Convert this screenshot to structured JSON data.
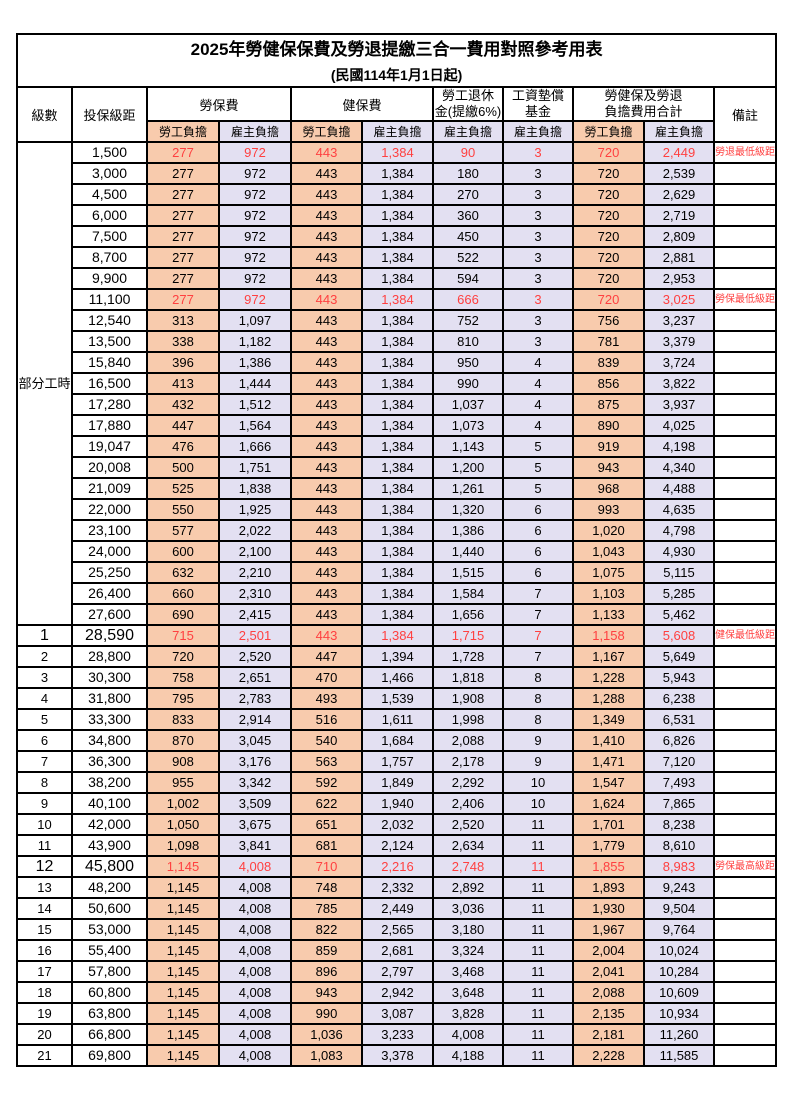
{
  "title": "2025年勞健保保費及勞退提繳三合一費用對照參考用表",
  "subtitle": "(民國114年1月1日起)",
  "colors": {
    "worker_bg": "#F8CBAD",
    "employer_bg": "#E3E0F2",
    "highlight_text": "#FF4040",
    "border": "#000000"
  },
  "header": {
    "level": "級數",
    "bracket": "投保級距",
    "labor_insurance": "勞保費",
    "health_insurance": "健保費",
    "pension_line1": "勞工退休",
    "pension_line2": "金(提繳6%)",
    "wage_fund_line1": "工資墊償",
    "wage_fund_line2": "基金",
    "total_line1": "勞健保及勞退",
    "total_line2": "負擔費用合計",
    "remarks": "備註",
    "worker_share": "勞工負擔",
    "employer_share": "雇主負擔"
  },
  "part_time_label": "部分工時",
  "rows": [
    {
      "level": "",
      "bracket": "1,500",
      "values": [
        "277",
        "972",
        "443",
        "1,384",
        "90",
        "3",
        "720",
        "2,449"
      ],
      "note": "勞退最低級距",
      "highlight": true,
      "big": false
    },
    {
      "level": "",
      "bracket": "3,000",
      "values": [
        "277",
        "972",
        "443",
        "1,384",
        "180",
        "3",
        "720",
        "2,539"
      ],
      "note": "",
      "highlight": false,
      "big": false
    },
    {
      "level": "",
      "bracket": "4,500",
      "values": [
        "277",
        "972",
        "443",
        "1,384",
        "270",
        "3",
        "720",
        "2,629"
      ],
      "note": "",
      "highlight": false,
      "big": false
    },
    {
      "level": "",
      "bracket": "6,000",
      "values": [
        "277",
        "972",
        "443",
        "1,384",
        "360",
        "3",
        "720",
        "2,719"
      ],
      "note": "",
      "highlight": false,
      "big": false
    },
    {
      "level": "",
      "bracket": "7,500",
      "values": [
        "277",
        "972",
        "443",
        "1,384",
        "450",
        "3",
        "720",
        "2,809"
      ],
      "note": "",
      "highlight": false,
      "big": false
    },
    {
      "level": "",
      "bracket": "8,700",
      "values": [
        "277",
        "972",
        "443",
        "1,384",
        "522",
        "3",
        "720",
        "2,881"
      ],
      "note": "",
      "highlight": false,
      "big": false
    },
    {
      "level": "",
      "bracket": "9,900",
      "values": [
        "277",
        "972",
        "443",
        "1,384",
        "594",
        "3",
        "720",
        "2,953"
      ],
      "note": "",
      "highlight": false,
      "big": false
    },
    {
      "level": "",
      "bracket": "11,100",
      "values": [
        "277",
        "972",
        "443",
        "1,384",
        "666",
        "3",
        "720",
        "3,025"
      ],
      "note": "勞保最低級距",
      "highlight": true,
      "big": false
    },
    {
      "level": "",
      "bracket": "12,540",
      "values": [
        "313",
        "1,097",
        "443",
        "1,384",
        "752",
        "3",
        "756",
        "3,237"
      ],
      "note": "",
      "highlight": false,
      "big": false
    },
    {
      "level": "",
      "bracket": "13,500",
      "values": [
        "338",
        "1,182",
        "443",
        "1,384",
        "810",
        "3",
        "781",
        "3,379"
      ],
      "note": "",
      "highlight": false,
      "big": false
    },
    {
      "level": "",
      "bracket": "15,840",
      "values": [
        "396",
        "1,386",
        "443",
        "1,384",
        "950",
        "4",
        "839",
        "3,724"
      ],
      "note": "",
      "highlight": false,
      "big": false
    },
    {
      "level": "",
      "bracket": "16,500",
      "values": [
        "413",
        "1,444",
        "443",
        "1,384",
        "990",
        "4",
        "856",
        "3,822"
      ],
      "note": "",
      "highlight": false,
      "big": false
    },
    {
      "level": "",
      "bracket": "17,280",
      "values": [
        "432",
        "1,512",
        "443",
        "1,384",
        "1,037",
        "4",
        "875",
        "3,937"
      ],
      "note": "",
      "highlight": false,
      "big": false
    },
    {
      "level": "",
      "bracket": "17,880",
      "values": [
        "447",
        "1,564",
        "443",
        "1,384",
        "1,073",
        "4",
        "890",
        "4,025"
      ],
      "note": "",
      "highlight": false,
      "big": false
    },
    {
      "level": "",
      "bracket": "19,047",
      "values": [
        "476",
        "1,666",
        "443",
        "1,384",
        "1,143",
        "5",
        "919",
        "4,198"
      ],
      "note": "",
      "highlight": false,
      "big": false
    },
    {
      "level": "",
      "bracket": "20,008",
      "values": [
        "500",
        "1,751",
        "443",
        "1,384",
        "1,200",
        "5",
        "943",
        "4,340"
      ],
      "note": "",
      "highlight": false,
      "big": false
    },
    {
      "level": "",
      "bracket": "21,009",
      "values": [
        "525",
        "1,838",
        "443",
        "1,384",
        "1,261",
        "5",
        "968",
        "4,488"
      ],
      "note": "",
      "highlight": false,
      "big": false
    },
    {
      "level": "",
      "bracket": "22,000",
      "values": [
        "550",
        "1,925",
        "443",
        "1,384",
        "1,320",
        "6",
        "993",
        "4,635"
      ],
      "note": "",
      "highlight": false,
      "big": false
    },
    {
      "level": "",
      "bracket": "23,100",
      "values": [
        "577",
        "2,022",
        "443",
        "1,384",
        "1,386",
        "6",
        "1,020",
        "4,798"
      ],
      "note": "",
      "highlight": false,
      "big": false
    },
    {
      "level": "",
      "bracket": "24,000",
      "values": [
        "600",
        "2,100",
        "443",
        "1,384",
        "1,440",
        "6",
        "1,043",
        "4,930"
      ],
      "note": "",
      "highlight": false,
      "big": false
    },
    {
      "level": "",
      "bracket": "25,250",
      "values": [
        "632",
        "2,210",
        "443",
        "1,384",
        "1,515",
        "6",
        "1,075",
        "5,115"
      ],
      "note": "",
      "highlight": false,
      "big": false
    },
    {
      "level": "",
      "bracket": "26,400",
      "values": [
        "660",
        "2,310",
        "443",
        "1,384",
        "1,584",
        "7",
        "1,103",
        "5,285"
      ],
      "note": "",
      "highlight": false,
      "big": false
    },
    {
      "level": "",
      "bracket": "27,600",
      "values": [
        "690",
        "2,415",
        "443",
        "1,384",
        "1,656",
        "7",
        "1,133",
        "5,462"
      ],
      "note": "",
      "highlight": false,
      "big": false
    },
    {
      "level": "1",
      "bracket": "28,590",
      "values": [
        "715",
        "2,501",
        "443",
        "1,384",
        "1,715",
        "7",
        "1,158",
        "5,608"
      ],
      "note": "健保最低級距",
      "highlight": true,
      "big": true
    },
    {
      "level": "2",
      "bracket": "28,800",
      "values": [
        "720",
        "2,520",
        "447",
        "1,394",
        "1,728",
        "7",
        "1,167",
        "5,649"
      ],
      "note": "",
      "highlight": false,
      "big": false
    },
    {
      "level": "3",
      "bracket": "30,300",
      "values": [
        "758",
        "2,651",
        "470",
        "1,466",
        "1,818",
        "8",
        "1,228",
        "5,943"
      ],
      "note": "",
      "highlight": false,
      "big": false
    },
    {
      "level": "4",
      "bracket": "31,800",
      "values": [
        "795",
        "2,783",
        "493",
        "1,539",
        "1,908",
        "8",
        "1,288",
        "6,238"
      ],
      "note": "",
      "highlight": false,
      "big": false
    },
    {
      "level": "5",
      "bracket": "33,300",
      "values": [
        "833",
        "2,914",
        "516",
        "1,611",
        "1,998",
        "8",
        "1,349",
        "6,531"
      ],
      "note": "",
      "highlight": false,
      "big": false
    },
    {
      "level": "6",
      "bracket": "34,800",
      "values": [
        "870",
        "3,045",
        "540",
        "1,684",
        "2,088",
        "9",
        "1,410",
        "6,826"
      ],
      "note": "",
      "highlight": false,
      "big": false
    },
    {
      "level": "7",
      "bracket": "36,300",
      "values": [
        "908",
        "3,176",
        "563",
        "1,757",
        "2,178",
        "9",
        "1,471",
        "7,120"
      ],
      "note": "",
      "highlight": false,
      "big": false
    },
    {
      "level": "8",
      "bracket": "38,200",
      "values": [
        "955",
        "3,342",
        "592",
        "1,849",
        "2,292",
        "10",
        "1,547",
        "7,493"
      ],
      "note": "",
      "highlight": false,
      "big": false
    },
    {
      "level": "9",
      "bracket": "40,100",
      "values": [
        "1,002",
        "3,509",
        "622",
        "1,940",
        "2,406",
        "10",
        "1,624",
        "7,865"
      ],
      "note": "",
      "highlight": false,
      "big": false
    },
    {
      "level": "10",
      "bracket": "42,000",
      "values": [
        "1,050",
        "3,675",
        "651",
        "2,032",
        "2,520",
        "11",
        "1,701",
        "8,238"
      ],
      "note": "",
      "highlight": false,
      "big": false
    },
    {
      "level": "11",
      "bracket": "43,900",
      "values": [
        "1,098",
        "3,841",
        "681",
        "2,124",
        "2,634",
        "11",
        "1,779",
        "8,610"
      ],
      "note": "",
      "highlight": false,
      "big": false
    },
    {
      "level": "12",
      "bracket": "45,800",
      "values": [
        "1,145",
        "4,008",
        "710",
        "2,216",
        "2,748",
        "11",
        "1,855",
        "8,983"
      ],
      "note": "勞保最高級距",
      "highlight": true,
      "big": true
    },
    {
      "level": "13",
      "bracket": "48,200",
      "values": [
        "1,145",
        "4,008",
        "748",
        "2,332",
        "2,892",
        "11",
        "1,893",
        "9,243"
      ],
      "note": "",
      "highlight": false,
      "big": false
    },
    {
      "level": "14",
      "bracket": "50,600",
      "values": [
        "1,145",
        "4,008",
        "785",
        "2,449",
        "3,036",
        "11",
        "1,930",
        "9,504"
      ],
      "note": "",
      "highlight": false,
      "big": false
    },
    {
      "level": "15",
      "bracket": "53,000",
      "values": [
        "1,145",
        "4,008",
        "822",
        "2,565",
        "3,180",
        "11",
        "1,967",
        "9,764"
      ],
      "note": "",
      "highlight": false,
      "big": false
    },
    {
      "level": "16",
      "bracket": "55,400",
      "values": [
        "1,145",
        "4,008",
        "859",
        "2,681",
        "3,324",
        "11",
        "2,004",
        "10,024"
      ],
      "note": "",
      "highlight": false,
      "big": false
    },
    {
      "level": "17",
      "bracket": "57,800",
      "values": [
        "1,145",
        "4,008",
        "896",
        "2,797",
        "3,468",
        "11",
        "2,041",
        "10,284"
      ],
      "note": "",
      "highlight": false,
      "big": false
    },
    {
      "level": "18",
      "bracket": "60,800",
      "values": [
        "1,145",
        "4,008",
        "943",
        "2,942",
        "3,648",
        "11",
        "2,088",
        "10,609"
      ],
      "note": "",
      "highlight": false,
      "big": false
    },
    {
      "level": "19",
      "bracket": "63,800",
      "values": [
        "1,145",
        "4,008",
        "990",
        "3,087",
        "3,828",
        "11",
        "2,135",
        "10,934"
      ],
      "note": "",
      "highlight": false,
      "big": false
    },
    {
      "level": "20",
      "bracket": "66,800",
      "values": [
        "1,145",
        "4,008",
        "1,036",
        "3,233",
        "4,008",
        "11",
        "2,181",
        "11,260"
      ],
      "note": "",
      "highlight": false,
      "big": false
    },
    {
      "level": "21",
      "bracket": "69,800",
      "values": [
        "1,145",
        "4,008",
        "1,083",
        "3,378",
        "4,188",
        "11",
        "2,228",
        "11,585"
      ],
      "note": "",
      "highlight": false,
      "big": false
    }
  ],
  "value_column_share_types": [
    "worker",
    "employer",
    "worker",
    "employer",
    "employer",
    "employer",
    "worker",
    "employer"
  ]
}
